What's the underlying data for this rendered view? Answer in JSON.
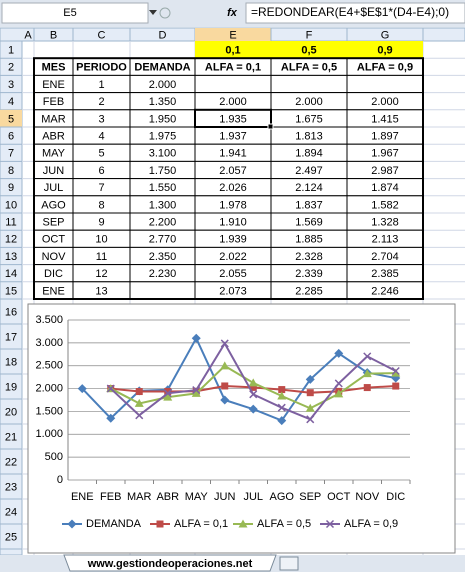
{
  "name_box": "E5",
  "fx": "fx",
  "formula": "=REDONDEAR(E4+$E$1*(D4-E4);0)",
  "columns": [
    "A",
    "B",
    "C",
    "D",
    "E",
    "F",
    "G"
  ],
  "row_numbers": [
    1,
    2,
    3,
    4,
    5,
    6,
    7,
    8,
    9,
    10,
    11,
    12,
    13,
    14,
    15,
    16,
    17,
    18,
    19,
    20,
    21,
    22,
    23,
    24,
    25
  ],
  "table": {
    "alpha_row": [
      "0,1",
      "0,5",
      "0,9"
    ],
    "header": [
      "MES",
      "PERIODO",
      "DEMANDA",
      "ALFA = 0,1",
      "ALFA = 0,5",
      "ALFA = 0,9"
    ],
    "rows": [
      [
        "ENE",
        "1",
        "2.000",
        null,
        null,
        null
      ],
      [
        "FEB",
        "2",
        "1.350",
        "2.000",
        "2.000",
        "2.000"
      ],
      [
        "MAR",
        "3",
        "1.950",
        "1.935",
        "1.675",
        "1.415"
      ],
      [
        "ABR",
        "4",
        "1.975",
        "1.937",
        "1.813",
        "1.897"
      ],
      [
        "MAY",
        "5",
        "3.100",
        "1.941",
        "1.894",
        "1.967"
      ],
      [
        "JUN",
        "6",
        "1.750",
        "2.057",
        "2.497",
        "2.987"
      ],
      [
        "JUL",
        "7",
        "1.550",
        "2.026",
        "2.124",
        "1.874"
      ],
      [
        "AGO",
        "8",
        "1.300",
        "1.978",
        "1.837",
        "1.582"
      ],
      [
        "SEP",
        "9",
        "2.200",
        "1.910",
        "1.569",
        "1.328"
      ],
      [
        "OCT",
        "10",
        "2.770",
        "1.939",
        "1.885",
        "2.113"
      ],
      [
        "NOV",
        "11",
        "2.350",
        "2.022",
        "2.328",
        "2.704"
      ],
      [
        "DIC",
        "12",
        "2.230",
        "2.055",
        "2.339",
        "2.385"
      ],
      [
        "ENE",
        "13",
        null,
        "2.073",
        "2.285",
        "2.246"
      ]
    ]
  },
  "chart": {
    "type": "line",
    "categories": [
      "ENE",
      "FEB",
      "MAR",
      "ABR",
      "MAY",
      "JUN",
      "JUL",
      "AGO",
      "SEP",
      "OCT",
      "NOV",
      "DIC"
    ],
    "ylim": [
      0,
      3500
    ],
    "yticks": [
      0,
      {
        "value": 500,
        "label": "500"
      },
      {
        "value": 1000,
        "label": "1.000"
      },
      {
        "value": 1500,
        "label": "1.500"
      },
      {
        "value": 2000,
        "label": "2.000"
      },
      {
        "value": 2500,
        "label": "2.500"
      },
      {
        "value": 3000,
        "label": "3.000"
      },
      {
        "value": 3500,
        "label": "3.500"
      }
    ],
    "grid": true,
    "legend": "bottom",
    "series": [
      {
        "name": "DEMANDA",
        "color": "#4a7ebb",
        "marker": "diamond",
        "values": [
          2000,
          1350,
          1950,
          1975,
          3100,
          1750,
          1550,
          1300,
          2200,
          2770,
          2350,
          2230
        ]
      },
      {
        "name": "ALFA = 0,1",
        "color": "#be4b48",
        "marker": "square",
        "values": [
          null,
          2000,
          1935,
          1937,
          1941,
          2057,
          2026,
          1978,
          1910,
          1939,
          2022,
          2055
        ]
      },
      {
        "name": "ALFA = 0,5",
        "color": "#98b954",
        "marker": "triangle",
        "values": [
          null,
          2000,
          1675,
          1813,
          1894,
          2497,
          2124,
          1837,
          1569,
          1885,
          2328,
          2339
        ]
      },
      {
        "name": "ALFA = 0,9",
        "color": "#7d60a0",
        "marker": "x",
        "values": [
          null,
          2000,
          1415,
          1897,
          1967,
          2987,
          1874,
          1582,
          1328,
          2113,
          2704,
          2385
        ]
      }
    ]
  },
  "sheet_tab": "www.gestiondeoperaciones.net"
}
